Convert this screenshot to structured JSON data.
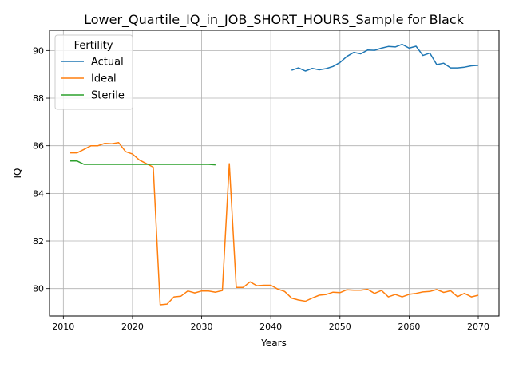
{
  "chart_data": {
    "type": "line",
    "title": "Lower_Quartile_IQ_in_JOB_SHORT_HOURS_Sample for Black",
    "xlabel": "Years",
    "ylabel": "IQ",
    "xlim": [
      2008,
      2073
    ],
    "ylim": [
      78.85,
      90.85
    ],
    "grid": true,
    "x_ticks": [
      2010,
      2020,
      2030,
      2040,
      2050,
      2060,
      2070
    ],
    "y_ticks": [
      80,
      82,
      84,
      86,
      88,
      90
    ],
    "legend": {
      "title": "Fertility",
      "placement": "top-left"
    },
    "series": [
      {
        "name": "Actual",
        "color": "#1f77b4",
        "x": [
          2043,
          2044,
          2045,
          2046,
          2047,
          2048,
          2049,
          2050,
          2051,
          2052,
          2053,
          2054,
          2055,
          2056,
          2057,
          2058,
          2059,
          2060,
          2061,
          2062,
          2063,
          2064,
          2065,
          2066,
          2067,
          2068,
          2069,
          2070
        ],
        "y": [
          89.17,
          89.27,
          89.14,
          89.25,
          89.19,
          89.24,
          89.33,
          89.5,
          89.75,
          89.92,
          89.86,
          90.02,
          90.01,
          90.1,
          90.17,
          90.15,
          90.26,
          90.1,
          90.18,
          89.79,
          89.89,
          89.41,
          89.47,
          89.27,
          89.27,
          89.3,
          89.36,
          89.38
        ]
      },
      {
        "name": "Ideal",
        "color": "#ff7f0e",
        "x": [
          2011,
          2012,
          2013,
          2014,
          2015,
          2016,
          2017,
          2018,
          2019,
          2020,
          2021,
          2022,
          2023,
          2024,
          2025,
          2026,
          2027,
          2028,
          2029,
          2030,
          2031,
          2032,
          2033,
          2034,
          2035,
          2036,
          2037,
          2038,
          2039,
          2040,
          2041,
          2042,
          2043,
          2044,
          2045,
          2046,
          2047,
          2048,
          2049,
          2050,
          2051,
          2052,
          2053,
          2054,
          2055,
          2056,
          2057,
          2058,
          2059,
          2060,
          2061,
          2062,
          2063,
          2064,
          2065,
          2066,
          2067,
          2068,
          2069,
          2070
        ],
        "y": [
          85.7,
          85.7,
          85.85,
          86.0,
          86.0,
          86.1,
          86.08,
          86.13,
          85.75,
          85.65,
          85.4,
          85.25,
          85.1,
          79.32,
          79.35,
          79.65,
          79.68,
          79.9,
          79.82,
          79.9,
          79.9,
          79.85,
          79.92,
          85.25,
          80.05,
          80.05,
          80.28,
          80.12,
          80.14,
          80.14,
          79.98,
          79.88,
          79.6,
          79.52,
          79.47,
          79.6,
          79.72,
          79.75,
          79.85,
          79.83,
          79.95,
          79.93,
          79.93,
          79.97,
          79.8,
          79.92,
          79.65,
          79.75,
          79.65,
          79.76,
          79.8,
          79.86,
          79.88,
          79.96,
          79.84,
          79.91,
          79.66,
          79.8,
          79.65,
          79.72
        ]
      },
      {
        "name": "Sterile",
        "color": "#2ca02c",
        "x": [
          2011,
          2012,
          2013,
          2014,
          2015,
          2016,
          2017,
          2018,
          2019,
          2020,
          2021,
          2022,
          2023,
          2024,
          2025,
          2026,
          2027,
          2028,
          2029,
          2030,
          2031,
          2032
        ],
        "y": [
          85.36,
          85.36,
          85.22,
          85.22,
          85.22,
          85.22,
          85.22,
          85.22,
          85.22,
          85.22,
          85.22,
          85.22,
          85.22,
          85.22,
          85.22,
          85.22,
          85.22,
          85.22,
          85.22,
          85.22,
          85.22,
          85.2
        ]
      }
    ]
  }
}
